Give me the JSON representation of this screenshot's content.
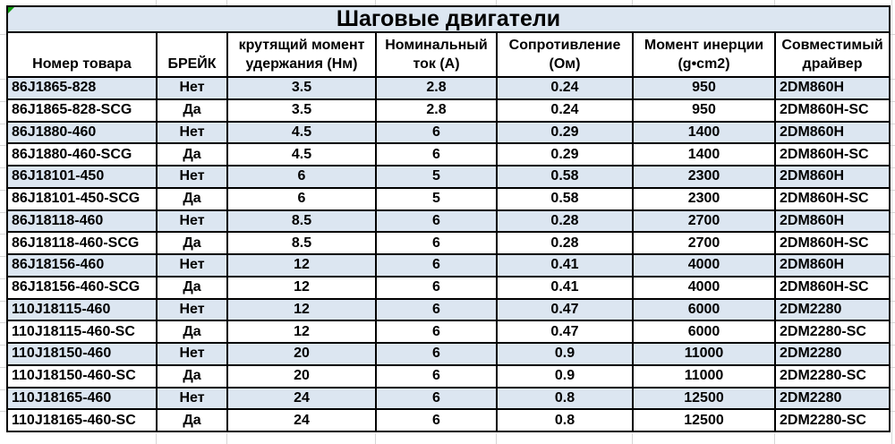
{
  "title": "Шаговые двигатели",
  "columns": [
    "Номер товара",
    "БРЕЙК",
    "крутящий момент\nудержания (Нм)",
    "Номинальный\nток (А)",
    "Сопротивление\n(Ом)",
    "Момент инерции\n(g•cm2)",
    "Совместимый\nдрайвер"
  ],
  "rows": [
    [
      "86J1865-828",
      "Нет",
      "3.5",
      "2.8",
      "0.24",
      "950",
      "2DM860H"
    ],
    [
      "86J1865-828-SCG",
      "Да",
      "3.5",
      "2.8",
      "0.24",
      "950",
      "2DM860H-SC"
    ],
    [
      "86J1880-460",
      "Нет",
      "4.5",
      "6",
      "0.29",
      "1400",
      "2DM860H"
    ],
    [
      "86J1880-460-SCG",
      "Да",
      "4.5",
      "6",
      "0.29",
      "1400",
      "2DM860H-SC"
    ],
    [
      "86J18101-450",
      "Нет",
      "6",
      "5",
      "0.58",
      "2300",
      "2DM860H"
    ],
    [
      "86J18101-450-SCG",
      "Да",
      "6",
      "5",
      "0.58",
      "2300",
      "2DM860H-SC"
    ],
    [
      "86J18118-460",
      "Нет",
      "8.5",
      "6",
      "0.28",
      "2700",
      "2DM860H"
    ],
    [
      "86J18118-460-SCG",
      "Да",
      "8.5",
      "6",
      "0.28",
      "2700",
      "2DM860H-SC"
    ],
    [
      "86J18156-460",
      "Нет",
      "12",
      "6",
      "0.41",
      "4000",
      "2DM860H"
    ],
    [
      "86J18156-460-SCG",
      "Да",
      "12",
      "6",
      "0.41",
      "4000",
      "2DM860H-SC"
    ],
    [
      "110J18115-460",
      "Нет",
      "12",
      "6",
      "0.47",
      "6000",
      "2DM2280"
    ],
    [
      "110J18115-460-SC",
      "Да",
      "12",
      "6",
      "0.47",
      "6000",
      "2DM2280-SC"
    ],
    [
      "110J18150-460",
      "Нет",
      "20",
      "6",
      "0.9",
      "11000",
      "2DM2280"
    ],
    [
      "110J18150-460-SC",
      "Да",
      "20",
      "6",
      "0.9",
      "11000",
      "2DM2280-SC"
    ],
    [
      "110J18165-460",
      "Нет",
      "24",
      "6",
      "0.8",
      "12500",
      "2DM2280"
    ],
    [
      "110J18165-460-SC",
      "Да",
      "24",
      "6",
      "0.8",
      "12500",
      "2DM2280-SC"
    ]
  ],
  "colors": {
    "band_bg": "#dce6f1",
    "border": "#000000",
    "gridline": "#d6d6d6",
    "error_marker_green": "#0c9a0c"
  },
  "chart_data": {
    "type": "table",
    "title": "Шаговые двигатели",
    "categories": [
      "Номер товара",
      "БРЕЙК",
      "крутящий момент удержания (Нм)",
      "Номинальный ток (А)",
      "Сопротивление (Ом)",
      "Момент инерции (g•cm2)",
      "Совместимый драйвер"
    ]
  }
}
